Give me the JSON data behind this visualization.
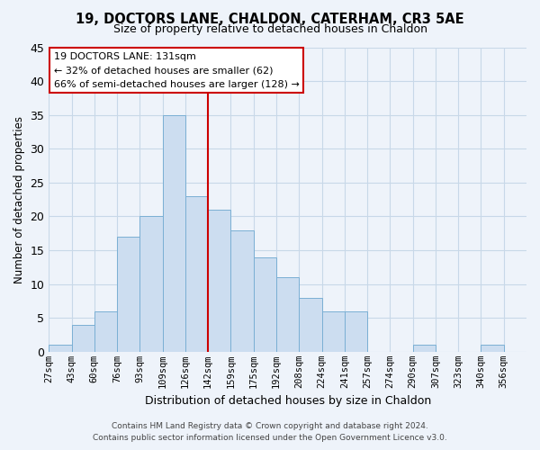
{
  "title": "19, DOCTORS LANE, CHALDON, CATERHAM, CR3 5AE",
  "subtitle": "Size of property relative to detached houses in Chaldon",
  "xlabel": "Distribution of detached houses by size in Chaldon",
  "ylabel": "Number of detached properties",
  "bin_labels": [
    "27sqm",
    "43sqm",
    "60sqm",
    "76sqm",
    "93sqm",
    "109sqm",
    "126sqm",
    "142sqm",
    "159sqm",
    "175sqm",
    "192sqm",
    "208sqm",
    "224sqm",
    "241sqm",
    "257sqm",
    "274sqm",
    "290sqm",
    "307sqm",
    "323sqm",
    "340sqm",
    "356sqm"
  ],
  "counts": [
    1,
    4,
    6,
    17,
    20,
    35,
    23,
    21,
    18,
    14,
    11,
    8,
    6,
    6,
    0,
    0,
    1,
    0,
    0,
    1,
    0
  ],
  "bar_color": "#ccddf0",
  "bar_edge_color": "#7aafd4",
  "grid_color": "#c8d8e8",
  "vline_color": "#cc0000",
  "annotation_title": "19 DOCTORS LANE: 131sqm",
  "annotation_line1": "← 32% of detached houses are smaller (62)",
  "annotation_line2": "66% of semi-detached houses are larger (128) →",
  "annotation_box_color": "#ffffff",
  "annotation_box_edge": "#cc0000",
  "ylim": [
    0,
    45
  ],
  "yticks": [
    0,
    5,
    10,
    15,
    20,
    25,
    30,
    35,
    40,
    45
  ],
  "footer1": "Contains HM Land Registry data © Crown copyright and database right 2024.",
  "footer2": "Contains public sector information licensed under the Open Government Licence v3.0.",
  "background_color": "#eef3fa"
}
